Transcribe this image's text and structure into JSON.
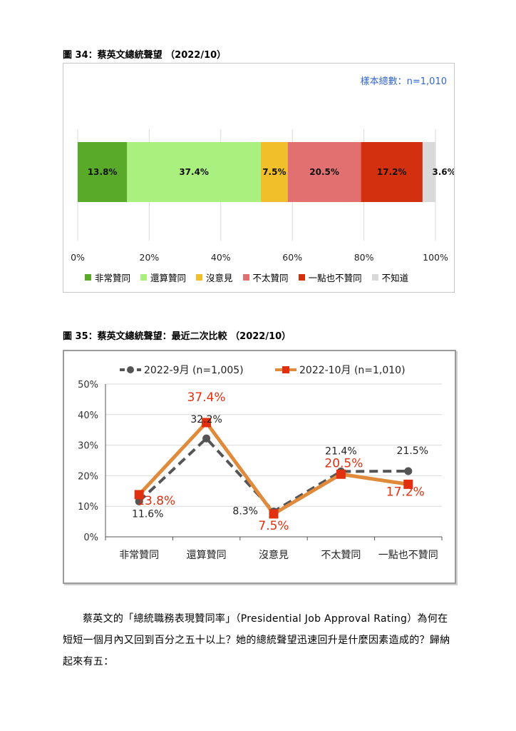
{
  "figure1": {
    "title": "圖 34：蔡英文總統聲望 （2022/10）",
    "sample_note": "樣本總數：n=1,010",
    "chart_data": {
      "type": "bar",
      "orientation": "horizontal-stacked-100",
      "categories": [
        "非常贊同",
        "還算贊同",
        "沒意見",
        "不太贊同",
        "一點也不贊同",
        "不知道"
      ],
      "values": [
        13.8,
        37.4,
        7.5,
        20.5,
        17.2,
        3.6
      ],
      "value_labels": [
        "13.8%",
        "37.4%",
        "7.5%",
        "20.5%",
        "17.2%",
        "3.6%"
      ],
      "colors": [
        "#5aaa2a",
        "#a9f07e",
        "#f0bf2a",
        "#e37070",
        "#d33010",
        "#d9d9d9"
      ],
      "xticks": [
        "0%",
        "20%",
        "40%",
        "60%",
        "80%",
        "100%"
      ],
      "xlim": [
        0,
        100
      ],
      "legend_position": "bottom"
    }
  },
  "figure2": {
    "title": "圖 35：蔡英文總統聲望：最近二次比較 （2022/10）",
    "chart_data": {
      "type": "line",
      "categories": [
        "非常贊同",
        "還算贊同",
        "沒意見",
        "不太贊同",
        "一點也不贊同"
      ],
      "series": [
        {
          "name": "2022-9月 (n=1,005)",
          "values": [
            11.6,
            32.2,
            8.3,
            21.4,
            21.5
          ],
          "labels": [
            "11.6%",
            "32.2%",
            "8.3%",
            "21.4%",
            "21.5%"
          ],
          "color": "#555555",
          "style": "dashed",
          "marker": "circle"
        },
        {
          "name": "2022-10月 (n=1,010)",
          "values": [
            13.8,
            37.4,
            7.5,
            20.5,
            17.2
          ],
          "labels": [
            "13.8%",
            "37.4%",
            "7.5%",
            "20.5%",
            "17.2%"
          ],
          "color": "#e08a3c",
          "marker_color": "#e03010",
          "label_color": "#e03010",
          "style": "solid",
          "marker": "square"
        }
      ],
      "yticks": [
        "0%",
        "10%",
        "20%",
        "30%",
        "40%",
        "50%"
      ],
      "ylim": [
        0,
        50
      ],
      "legend_position": "top"
    }
  },
  "paragraph": "蔡英文的「總統職務表現贊同率」（Presidential Job Approval Rating）為何在短短一個月內又回到百分之五十以上？她的總統聲望迅速回升是什麼因素造成的？歸納起來有五："
}
